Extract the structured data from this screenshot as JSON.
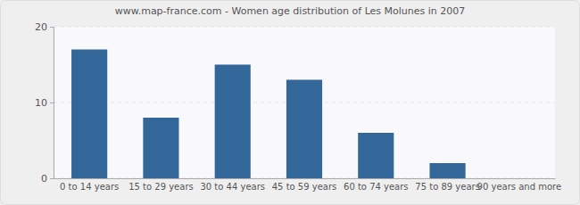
{
  "chart_data": {
    "type": "bar",
    "title": "www.map-france.com - Women age distribution of Les Molunes in 2007",
    "categories": [
      "0 to 14 years",
      "15 to 29 years",
      "30 to 44 years",
      "45 to 59 years",
      "60 to 74 years",
      "75 to 89 years",
      "90 years and more"
    ],
    "values": [
      17,
      8,
      15,
      13,
      6,
      2,
      0
    ],
    "color": "#336699",
    "ylim": [
      0,
      20
    ],
    "yticks": [
      0,
      10,
      20
    ],
    "grid": true
  }
}
